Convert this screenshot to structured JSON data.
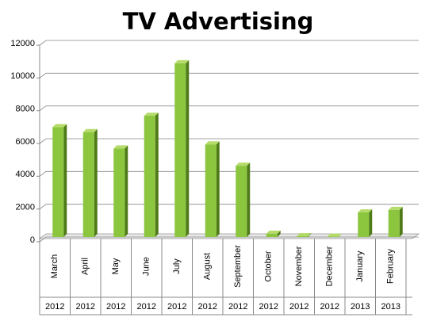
{
  "chart_data": {
    "type": "bar",
    "title": "TV Advertising",
    "categories": [
      "March",
      "April",
      "May",
      "June",
      "July",
      "August",
      "September",
      "October",
      "November",
      "December",
      "January",
      "February"
    ],
    "category_years": [
      "2012",
      "2012",
      "2012",
      "2012",
      "2012",
      "2012",
      "2012",
      "2012",
      "2012",
      "2012",
      "2013",
      "2013"
    ],
    "values": [
      6700,
      6400,
      5400,
      7400,
      10600,
      5650,
      4350,
      200,
      50,
      20,
      1500,
      1650
    ],
    "color": "#8cc63f",
    "ylim": [
      0,
      12000
    ],
    "yticks": [
      0,
      2000,
      4000,
      6000,
      8000,
      10000,
      12000
    ],
    "grid": true
  }
}
